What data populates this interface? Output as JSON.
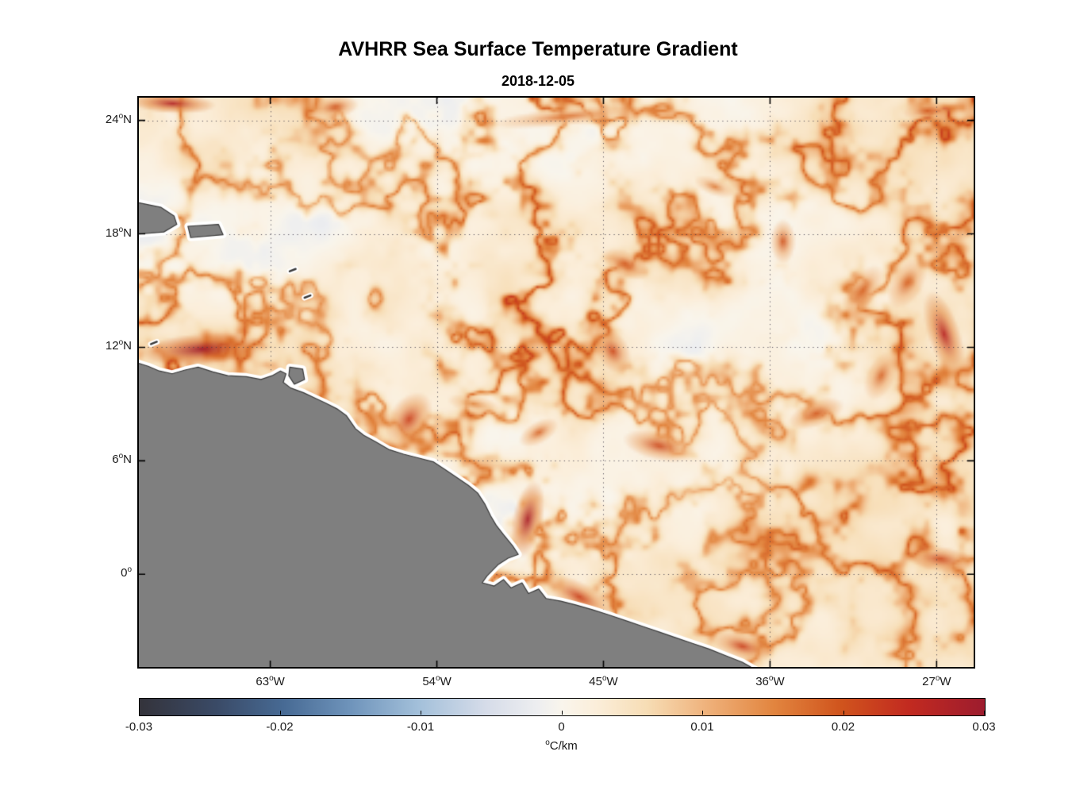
{
  "chart_data": {
    "type": "heatmap",
    "title": "AVHRR Sea Surface Temperature Gradient",
    "subtitle": "2018-12-05",
    "x_axis": {
      "tick_values": [
        -63,
        -54,
        -45,
        -36,
        -27
      ],
      "tick_labels": [
        {
          "num": "63",
          "suffix": "W"
        },
        {
          "num": "54",
          "suffix": "W"
        },
        {
          "num": "45",
          "suffix": "W"
        },
        {
          "num": "36",
          "suffix": "W"
        },
        {
          "num": "27",
          "suffix": "W"
        }
      ],
      "range": [
        -70.1,
        -25.0
      ]
    },
    "y_axis": {
      "tick_values": [
        24,
        18,
        12,
        6,
        0
      ],
      "tick_labels": [
        {
          "num": "24",
          "suffix": "N"
        },
        {
          "num": "18",
          "suffix": "N"
        },
        {
          "num": "12",
          "suffix": "N"
        },
        {
          "num": "6",
          "suffix": "N"
        },
        {
          "num": "0",
          "suffix": ""
        }
      ],
      "range": [
        -4.9,
        25.2
      ]
    },
    "grid": {
      "style": "dotted",
      "color": "rgba(60,55,72,0.85)"
    },
    "colorbar": {
      "orientation": "horizontal",
      "min": -0.03,
      "max": 0.03,
      "tick_values": [
        -0.03,
        -0.02,
        -0.01,
        0,
        0.01,
        0.02,
        0.03
      ],
      "tick_labels": [
        "-0.03",
        "-0.02",
        "-0.01",
        "0",
        "0.01",
        "0.02",
        "0.03"
      ],
      "unit": "°C/km",
      "colormap_stops": [
        [
          0.0,
          "#34333b"
        ],
        [
          0.09,
          "#3a4a66"
        ],
        [
          0.17,
          "#476a94"
        ],
        [
          0.25,
          "#6f94bb"
        ],
        [
          0.33,
          "#a3c0da"
        ],
        [
          0.41,
          "#d6dce9"
        ],
        [
          0.47,
          "#edeef0"
        ],
        [
          0.5,
          "#f9f5ec"
        ],
        [
          0.54,
          "#fbeeda"
        ],
        [
          0.6,
          "#f7ddb5"
        ],
        [
          0.67,
          "#efb27c"
        ],
        [
          0.75,
          "#e2853f"
        ],
        [
          0.83,
          "#d0541d"
        ],
        [
          0.91,
          "#c22a20"
        ],
        [
          1.0,
          "#9d1c2e"
        ]
      ]
    },
    "land": {
      "fill_color": "#7f7f7f",
      "outline_color": "#3a3a3a",
      "coast_halo_color": "#ffffff",
      "mainland_coast": [
        [
          -70.6,
          11.3
        ],
        [
          -69.6,
          11.0
        ],
        [
          -69.0,
          10.75
        ],
        [
          -68.3,
          10.6
        ],
        [
          -67.6,
          10.8
        ],
        [
          -66.9,
          10.95
        ],
        [
          -66.1,
          10.7
        ],
        [
          -65.3,
          10.5
        ],
        [
          -64.3,
          10.45
        ],
        [
          -63.5,
          10.3
        ],
        [
          -62.9,
          10.5
        ],
        [
          -62.45,
          10.75
        ],
        [
          -62.15,
          10.6
        ],
        [
          -62.3,
          10.15
        ],
        [
          -61.9,
          9.85
        ],
        [
          -61.2,
          9.6
        ],
        [
          -60.55,
          9.3
        ],
        [
          -60.0,
          9.05
        ],
        [
          -59.4,
          8.75
        ],
        [
          -58.9,
          8.4
        ],
        [
          -58.4,
          7.7
        ],
        [
          -57.95,
          7.35
        ],
        [
          -57.3,
          7.0
        ],
        [
          -56.6,
          6.6
        ],
        [
          -55.8,
          6.35
        ],
        [
          -55.0,
          6.15
        ],
        [
          -54.2,
          5.95
        ],
        [
          -53.5,
          5.5
        ],
        [
          -52.9,
          5.1
        ],
        [
          -52.3,
          4.7
        ],
        [
          -51.8,
          4.3
        ],
        [
          -51.4,
          3.7
        ],
        [
          -51.1,
          3.1
        ],
        [
          -50.8,
          2.6
        ],
        [
          -50.4,
          2.1
        ],
        [
          -49.9,
          1.5
        ],
        [
          -49.6,
          1.05
        ],
        [
          -50.15,
          0.85
        ],
        [
          -50.7,
          0.5
        ],
        [
          -51.3,
          -0.1
        ],
        [
          -51.55,
          -0.45
        ],
        [
          -50.9,
          -0.62
        ],
        [
          -50.4,
          -0.28
        ],
        [
          -50.0,
          -0.72
        ],
        [
          -49.4,
          -0.45
        ],
        [
          -49.05,
          -1.02
        ],
        [
          -48.5,
          -0.78
        ],
        [
          -48.1,
          -1.28
        ],
        [
          -47.3,
          -1.42
        ],
        [
          -46.5,
          -1.62
        ],
        [
          -45.6,
          -1.87
        ],
        [
          -44.7,
          -2.15
        ],
        [
          -43.8,
          -2.45
        ],
        [
          -42.9,
          -2.75
        ],
        [
          -42.0,
          -3.05
        ],
        [
          -41.1,
          -3.35
        ],
        [
          -40.2,
          -3.65
        ],
        [
          -39.3,
          -3.95
        ],
        [
          -38.4,
          -4.3
        ],
        [
          -37.5,
          -4.65
        ],
        [
          -36.5,
          -5.2
        ]
      ],
      "mainland_close": [
        [
          -70.6,
          -5.2
        ]
      ],
      "islands": [
        [
          [
            -61.95,
            10.95
          ],
          [
            -61.25,
            10.85
          ],
          [
            -61.15,
            10.3
          ],
          [
            -61.7,
            10.05
          ],
          [
            -62.0,
            10.5
          ]
        ],
        [
          [
            -70.6,
            19.75
          ],
          [
            -68.9,
            19.4
          ],
          [
            -68.2,
            18.95
          ],
          [
            -68.05,
            18.5
          ],
          [
            -68.75,
            18.1
          ],
          [
            -70.6,
            17.95
          ]
        ],
        [
          [
            -67.45,
            18.4
          ],
          [
            -65.8,
            18.5
          ],
          [
            -65.55,
            17.95
          ],
          [
            -67.3,
            17.8
          ]
        ]
      ],
      "islets": [
        {
          "lon": -61.8,
          "lat": 16.1
        },
        {
          "lon": -61.0,
          "lat": 14.7
        },
        {
          "lon": -69.3,
          "lat": 12.25
        }
      ]
    },
    "field": {
      "units": "degC/km",
      "background_value": 0.002,
      "noise_amplitude": 0.007,
      "filament_amplitude": 0.022,
      "features": [
        {
          "lon": -66.7,
          "lat": 11.9,
          "value": 0.031,
          "rx": 3.4,
          "ry": 0.85,
          "rot": -4
        },
        {
          "lon": -55.5,
          "lat": 8.2,
          "value": 0.022,
          "rx": 1.1,
          "ry": 1.6,
          "rot": 35
        },
        {
          "lon": -49.1,
          "lat": 2.9,
          "value": 0.028,
          "rx": 0.85,
          "ry": 2.1,
          "rot": 12
        },
        {
          "lon": -46.3,
          "lat": -1.2,
          "value": 0.022,
          "rx": 2.1,
          "ry": 0.8,
          "rot": 28
        },
        {
          "lon": -37.5,
          "lat": -3.8,
          "value": 0.022,
          "rx": 1.7,
          "ry": 0.7,
          "rot": 15
        },
        {
          "lon": -26.6,
          "lat": 12.7,
          "value": 0.026,
          "rx": 0.9,
          "ry": 2.4,
          "rot": -18
        },
        {
          "lon": -28.6,
          "lat": 15.4,
          "value": 0.018,
          "rx": 0.9,
          "ry": 1.5,
          "rot": 30
        },
        {
          "lon": -26.8,
          "lat": 0.8,
          "value": 0.021,
          "rx": 1.9,
          "ry": 0.7,
          "rot": 8
        },
        {
          "lon": -68.3,
          "lat": 24.9,
          "value": 0.027,
          "rx": 2.4,
          "ry": 0.55,
          "rot": 3
        },
        {
          "lon": -59.5,
          "lat": 24.7,
          "value": 0.02,
          "rx": 1.3,
          "ry": 0.6,
          "rot": -8
        },
        {
          "lon": -47.0,
          "lat": 24.2,
          "value": 0.017,
          "rx": 4.2,
          "ry": 0.5,
          "rot": -6
        },
        {
          "lon": -43.8,
          "lat": 16.4,
          "value": 0.019,
          "rx": 1.4,
          "ry": 0.7,
          "rot": 25
        },
        {
          "lon": -44.5,
          "lat": 11.8,
          "value": 0.021,
          "rx": 0.9,
          "ry": 1.3,
          "rot": -30
        },
        {
          "lon": -42.0,
          "lat": 6.8,
          "value": 0.021,
          "rx": 2.0,
          "ry": 0.8,
          "rot": 12
        },
        {
          "lon": -35.3,
          "lat": 17.6,
          "value": 0.02,
          "rx": 0.7,
          "ry": 1.2,
          "rot": 0
        },
        {
          "lon": -31.0,
          "lat": 15.0,
          "value": 0.018,
          "rx": 0.8,
          "ry": 1.6,
          "rot": 35
        },
        {
          "lon": -33.5,
          "lat": 8.5,
          "value": 0.019,
          "rx": 1.6,
          "ry": 0.7,
          "rot": -20
        },
        {
          "lon": -48.5,
          "lat": 7.5,
          "value": 0.018,
          "rx": 1.2,
          "ry": 0.6,
          "rot": -30
        },
        {
          "lon": -27.5,
          "lat": 24.5,
          "value": 0.019,
          "rx": 1.4,
          "ry": 0.5,
          "rot": -5
        },
        {
          "lon": -39.0,
          "lat": 20.5,
          "value": 0.016,
          "rx": 1.2,
          "ry": 0.5,
          "rot": 20
        },
        {
          "lon": -30.0,
          "lat": 10.5,
          "value": 0.018,
          "rx": 0.8,
          "ry": 1.4,
          "rot": 25
        },
        {
          "lon": -52.0,
          "lat": 9.0,
          "value": 0.015,
          "rx": 1.5,
          "ry": 0.5,
          "rot": 10
        }
      ]
    }
  }
}
